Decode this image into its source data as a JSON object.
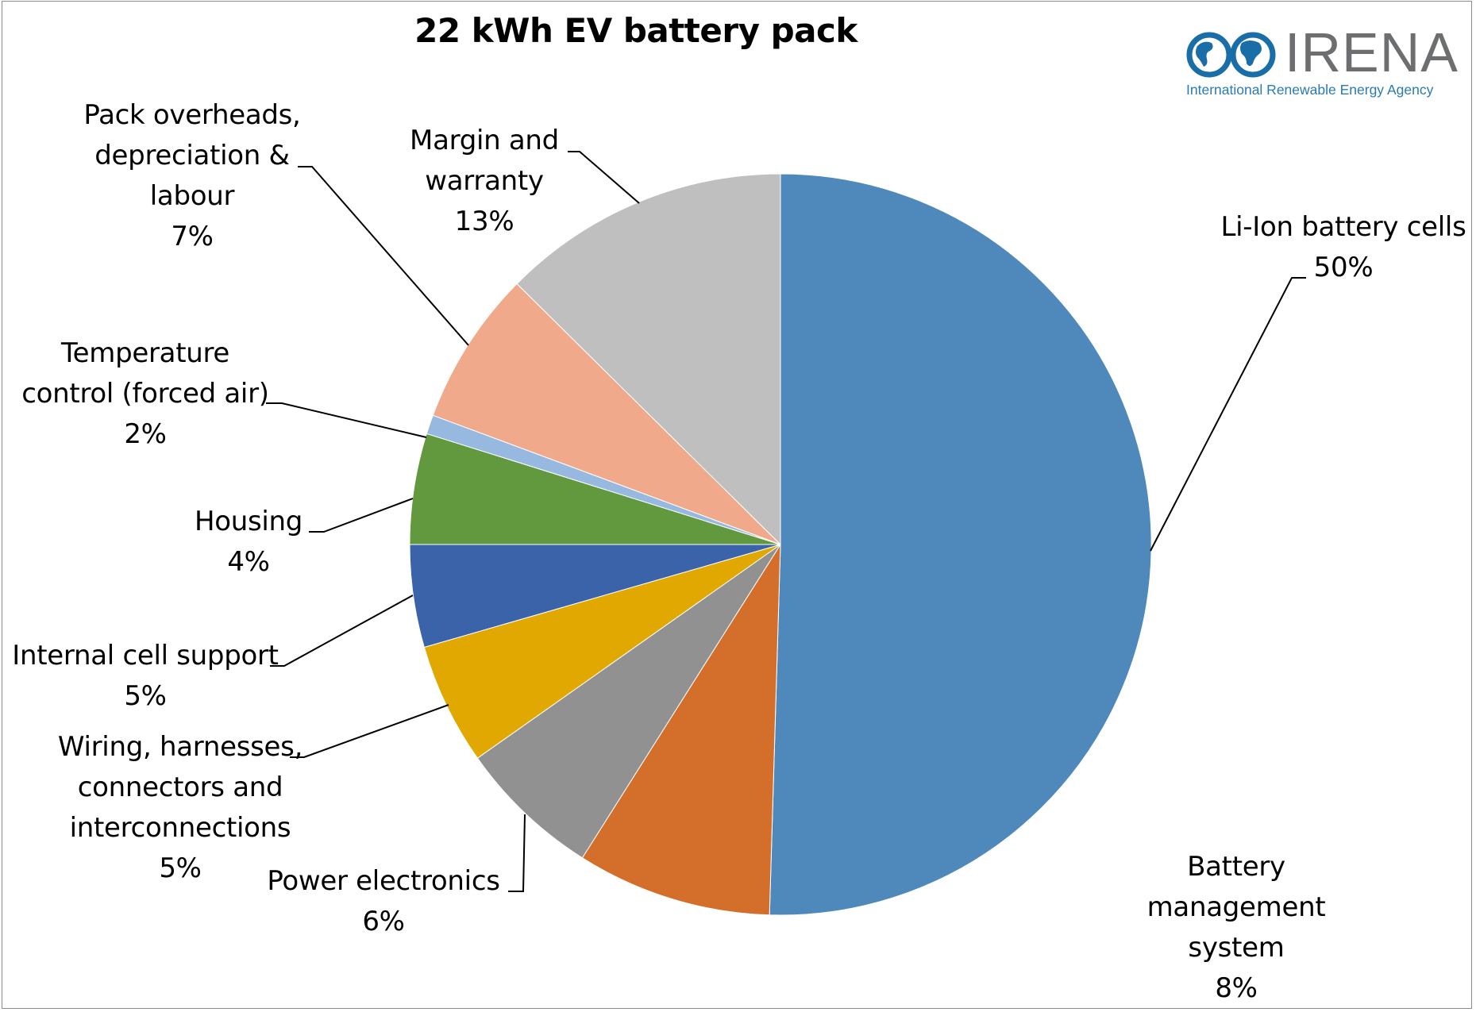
{
  "chart_data": {
    "type": "pie",
    "title": "22 kWh EV battery pack",
    "start_angle": "12 o'clock, clockwise",
    "categories": [
      "Li-Ion battery cells",
      "Battery management system",
      "Power electronics",
      "Wiring, harnesses, connectors and interconnections",
      "Internal cell support",
      "Housing",
      "Temperature control (forced air)",
      "Pack overheads, depreciation & labour",
      "Margin and warranty"
    ],
    "values": [
      50,
      8,
      6,
      5,
      5,
      4,
      2,
      7,
      13
    ],
    "value_labels": [
      "50%",
      "8%",
      "6%",
      "5%",
      "5%",
      "4%",
      "2%",
      "7%",
      "13%"
    ],
    "colors": [
      "#4f89bc",
      "#d46e2b",
      "#919191",
      "#e0a800",
      "#3b63aa",
      "#62993f",
      "#97b8df",
      "#f0a98b",
      "#bfbfbf"
    ],
    "legend": "none (data labels with leader lines)",
    "unit": "%"
  },
  "logo": {
    "name": "IRENA",
    "subtitle": "International Renewable Energy Agency",
    "brand_color": "#1a6ea8",
    "text_color": "#6d6e70"
  },
  "labels": {
    "li_ion": {
      "lines": [
        "Li-Ion battery cells",
        "50%"
      ]
    },
    "bms": {
      "lines": [
        "Battery",
        "management",
        "system",
        "8%"
      ]
    },
    "power": {
      "lines": [
        "Power electronics",
        "6%"
      ]
    },
    "wiring": {
      "lines": [
        "Wiring, harnesses,",
        "connectors and",
        "interconnections",
        "5%"
      ]
    },
    "internal": {
      "lines": [
        "Internal cell support",
        "5%"
      ]
    },
    "housing": {
      "lines": [
        "Housing",
        "4%"
      ]
    },
    "temp": {
      "lines": [
        "Temperature",
        "control (forced air)",
        "2%"
      ]
    },
    "pack": {
      "lines": [
        "Pack overheads,",
        "depreciation &",
        "labour",
        "7%"
      ]
    },
    "margin": {
      "lines": [
        "Margin and",
        "warranty",
        "13%"
      ]
    }
  }
}
